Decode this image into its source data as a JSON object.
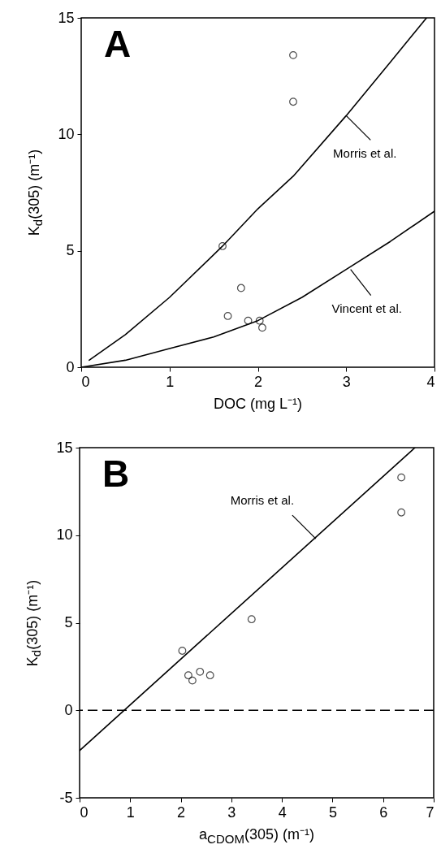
{
  "chart_data": [
    {
      "type": "scatter",
      "xlabel": "DOC (mg L⁻¹)",
      "ylabel": "K$_{d}$(305)  (m⁻¹)",
      "xlim": [
        0,
        4
      ],
      "xticks": [
        0,
        1,
        2,
        3,
        4
      ],
      "ylim": [
        0,
        15
      ],
      "yticks": [
        0,
        5,
        10,
        15
      ],
      "series": [
        {
          "color": "#000000",
          "marker": "circle",
          "x": [
            1.6,
            2.4,
            2.4,
            1.81,
            1.66,
            1.89,
            2.02,
            2.05
          ],
          "values": [
            5.2,
            13.4,
            11.4,
            3.4,
            2.2,
            2.0,
            2.0,
            1.7
          ]
        },
        {
          "type": "line",
          "color": "#000000",
          "marker": "none",
          "x": [
            0.09,
            0.5,
            1,
            1.6,
            2,
            2.4,
            3,
            3.5,
            3.91
          ],
          "values": [
            0.3,
            1.4,
            3.0,
            5.2,
            6.8,
            8.2,
            10.8,
            13.1,
            15
          ]
        },
        {
          "type": "line",
          "color": "#000000",
          "marker": "none",
          "x": [
            0,
            0.5,
            1,
            1.5,
            2,
            2.5,
            3,
            3.5,
            4
          ],
          "values": [
            0,
            0.3,
            0.8,
            1.3,
            2.0,
            3.0,
            4.2,
            5.4,
            6.7
          ]
        }
      ],
      "annotations": [
        "A",
        {
          "text": "Morris et al.",
          "x": 3.0,
          "y": 10.8
        },
        {
          "text": "Vincent et al.",
          "x": 3.05,
          "y": 4.2
        }
      ]
    },
    {
      "type": "scatter",
      "xlabel": "a$_{CDOM}$(305) (m⁻¹)",
      "ylabel": "K$_{d}$(305)  (m⁻¹)",
      "xlim": [
        0,
        7
      ],
      "xticks": [
        0,
        1,
        2,
        3,
        4,
        5,
        6,
        7
      ],
      "ylim": [
        -5,
        15
      ],
      "yticks": [
        -5,
        0,
        5,
        10,
        15
      ],
      "series": [
        {
          "color": "#000000",
          "marker": "circle",
          "x": [
            6.36,
            6.36,
            3.4,
            2.03,
            2.15,
            2.23,
            2.38,
            2.58
          ],
          "values": [
            13.3,
            11.3,
            5.2,
            3.4,
            2.0,
            1.7,
            2.2,
            2.0
          ]
        },
        {
          "type": "line",
          "color": "#000000",
          "marker": "none",
          "x": [
            0,
            6.63
          ],
          "values": [
            -2.3,
            15
          ]
        }
      ],
      "ref_lines": [
        {
          "axis": "y",
          "value": 0,
          "color": "#000000",
          "line_style": "dashed"
        }
      ],
      "annotations": [
        "B",
        {
          "text": "Morris et al.",
          "x": 4.67,
          "y": 9.8
        }
      ]
    }
  ]
}
